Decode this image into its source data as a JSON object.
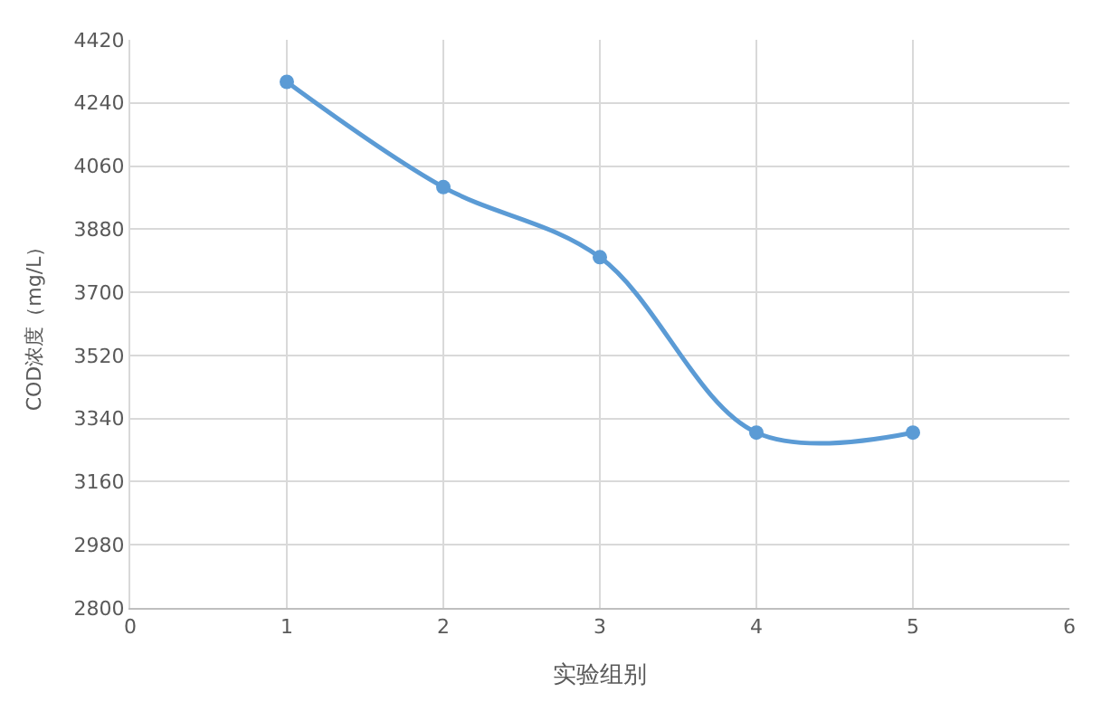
{
  "chart_data": {
    "type": "line",
    "xlabel": "实验组别",
    "ylabel": "COD浓度（mg/L）",
    "x": [
      1,
      2,
      3,
      4,
      5
    ],
    "series": [
      {
        "color": "#5b9bd5",
        "values": [
          4300,
          4000,
          3800,
          3300,
          3300
        ]
      }
    ],
    "xlim": [
      0,
      6
    ],
    "xticks": [
      0,
      1,
      2,
      3,
      4,
      5,
      6
    ],
    "ylim": [
      2800,
      4420
    ],
    "yticks": [
      2800,
      2980,
      3160,
      3340,
      3520,
      3700,
      3880,
      4060,
      4240,
      4420
    ],
    "grid": true,
    "marker": "circle",
    "legend": false
  }
}
